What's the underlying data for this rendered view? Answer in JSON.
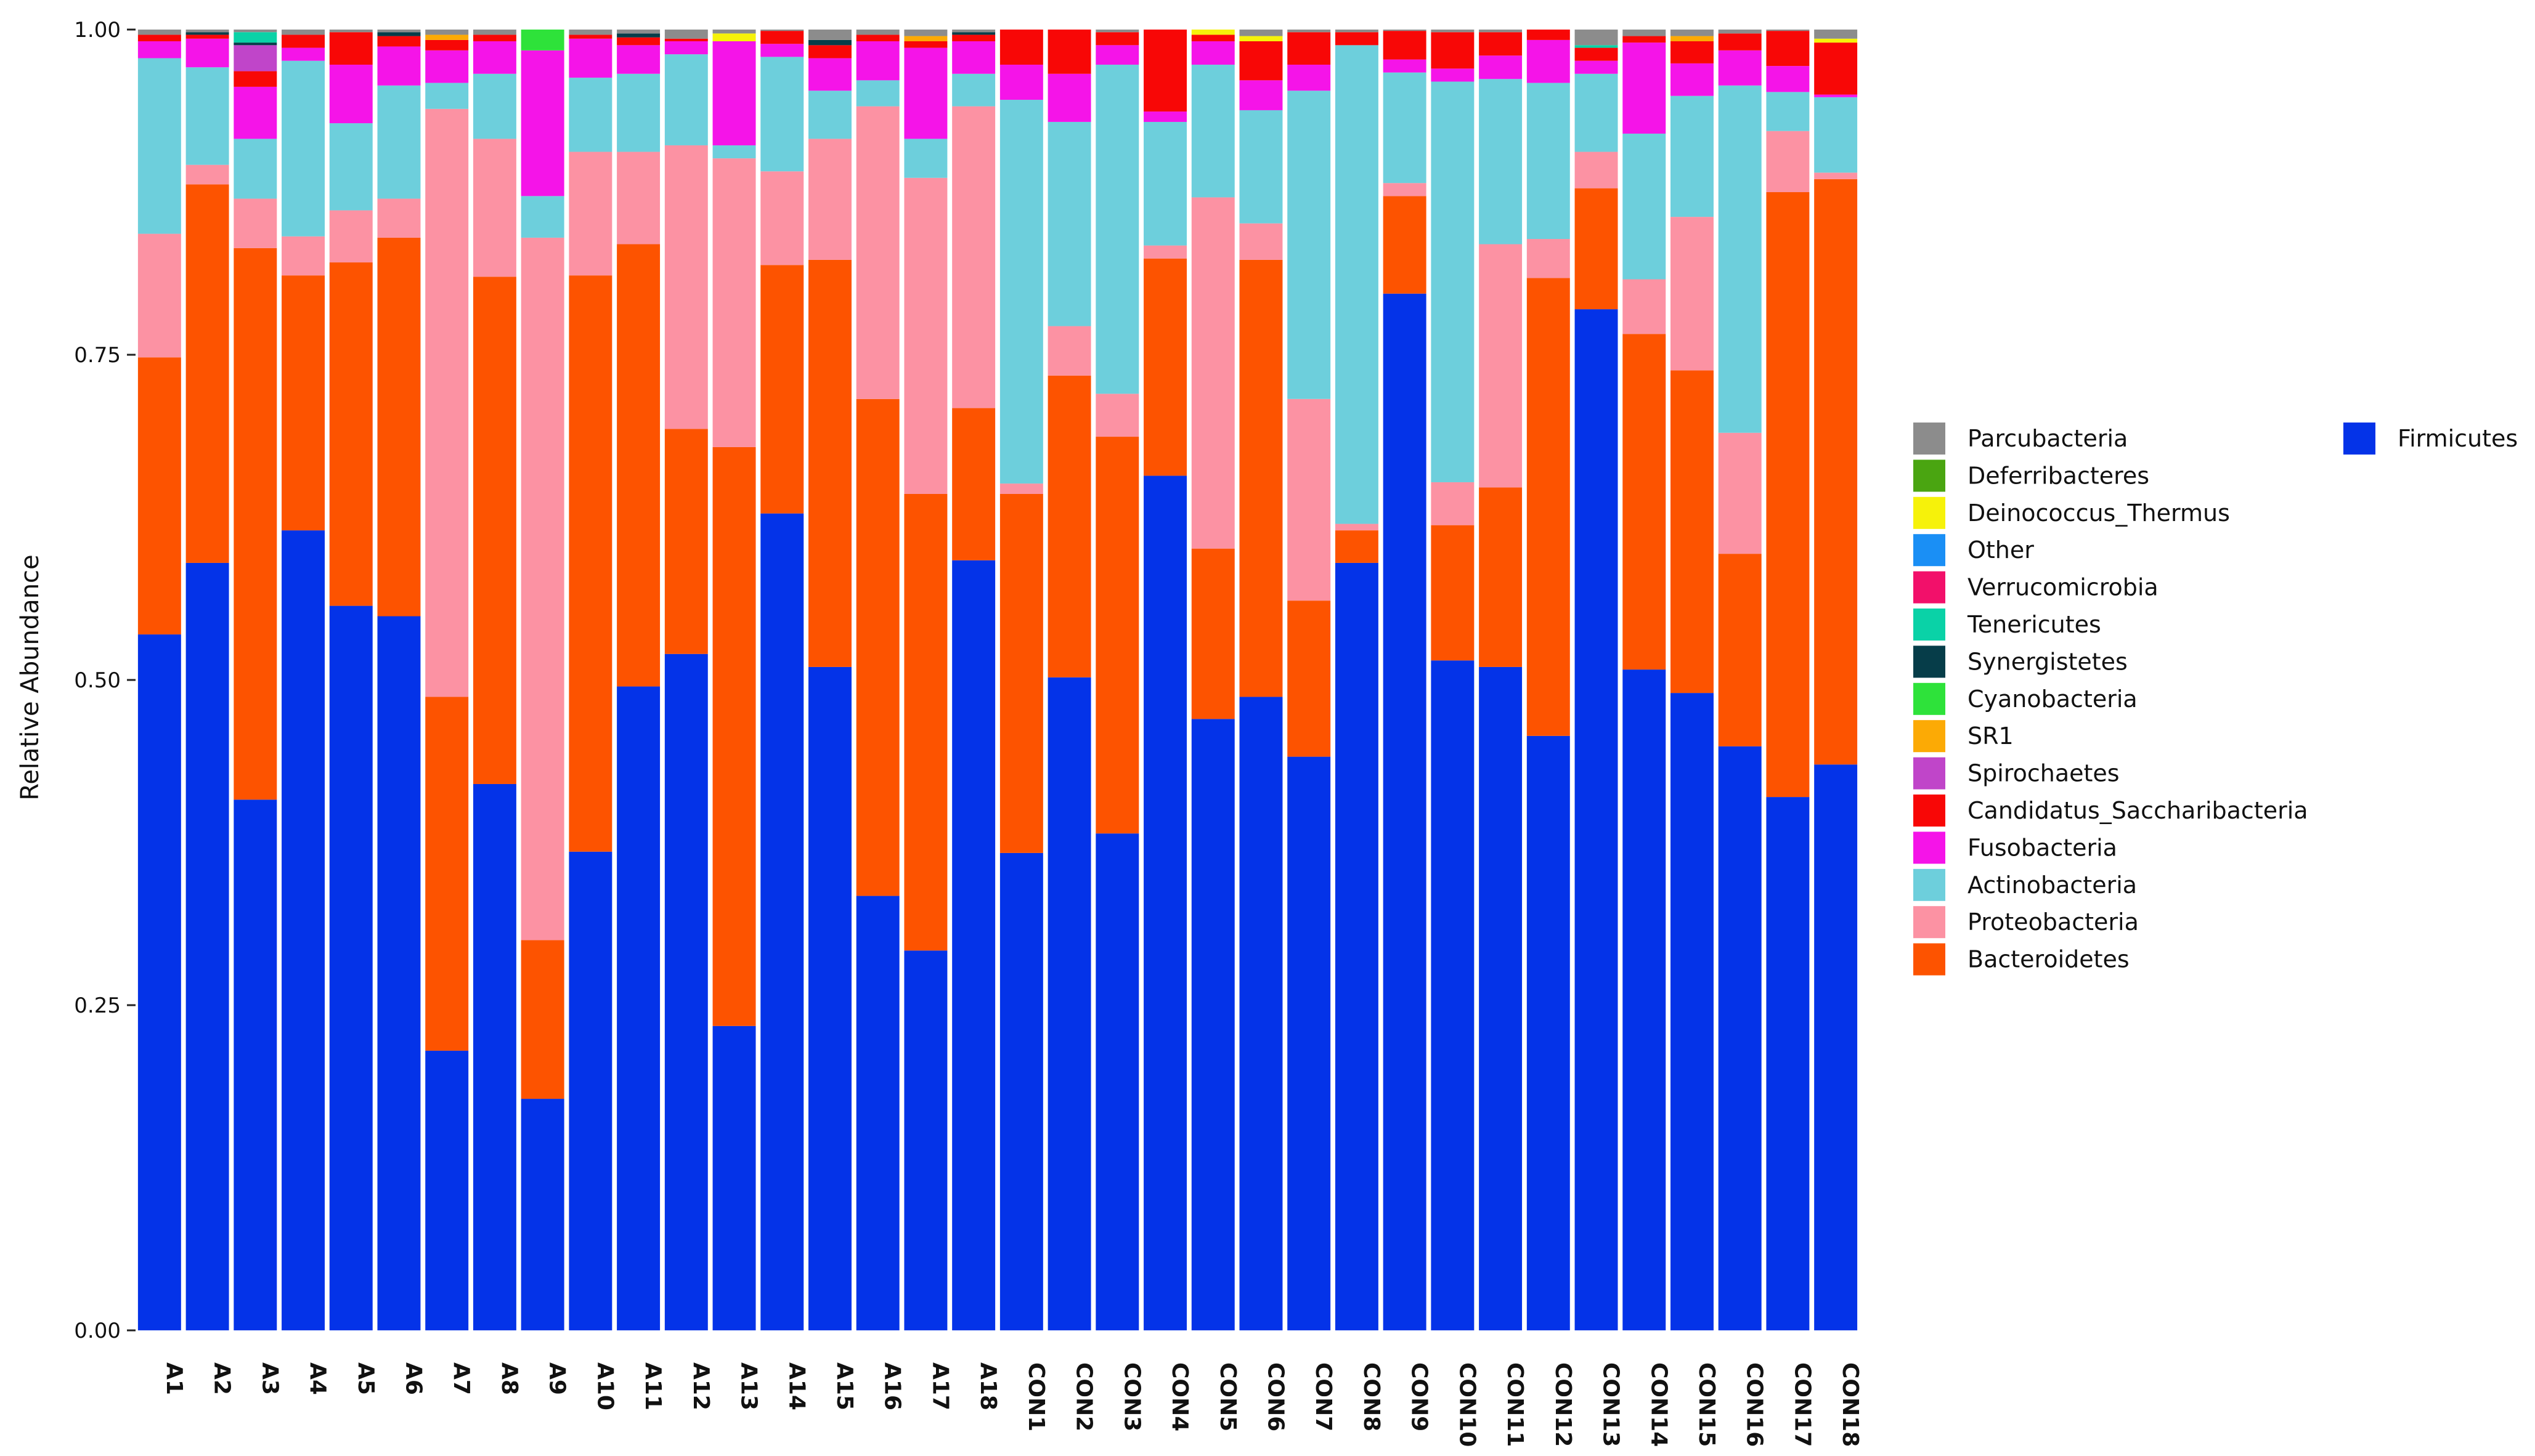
{
  "chart_data": {
    "type": "bar",
    "stacked": true,
    "ylabel": "Relative Abundance",
    "xlabel": "",
    "ylim": [
      0,
      1
    ],
    "yticks": [
      "0.00",
      "0.25",
      "0.50",
      "0.75",
      "1.00"
    ],
    "categories": [
      "A1",
      "A2",
      "A3",
      "A4",
      "A5",
      "A6",
      "A7",
      "A8",
      "A9",
      "A10",
      "A11",
      "A12",
      "A13",
      "A14",
      "A15",
      "A16",
      "A17",
      "A18",
      "CON1",
      "CON2",
      "CON3",
      "CON4",
      "CON5",
      "CON6",
      "CON7",
      "CON8",
      "CON9",
      "CON10",
      "CON11",
      "CON12",
      "CON13",
      "CON14",
      "CON15",
      "CON16",
      "CON17",
      "CON18"
    ],
    "series": [
      {
        "name": "Firmicutes",
        "color": "#0433e8",
        "values": [
          0.535,
          0.59,
          0.408,
          0.615,
          0.557,
          0.549,
          0.215,
          0.42,
          0.178,
          0.368,
          0.495,
          0.52,
          0.234,
          0.628,
          0.51,
          0.334,
          0.292,
          0.592,
          0.367,
          0.502,
          0.382,
          0.657,
          0.47,
          0.487,
          0.441,
          0.59,
          0.797,
          0.515,
          0.51,
          0.457,
          0.785,
          0.508,
          0.49,
          0.449,
          0.41,
          0.435
        ]
      },
      {
        "name": "Bacteroidetes",
        "color": "#fd5300",
        "values": [
          0.213,
          0.291,
          0.424,
          0.196,
          0.264,
          0.291,
          0.272,
          0.39,
          0.122,
          0.443,
          0.34,
          0.173,
          0.445,
          0.191,
          0.313,
          0.382,
          0.351,
          0.117,
          0.276,
          0.232,
          0.305,
          0.167,
          0.131,
          0.336,
          0.12,
          0.025,
          0.075,
          0.104,
          0.138,
          0.352,
          0.093,
          0.258,
          0.248,
          0.148,
          0.465,
          0.45
        ]
      },
      {
        "name": "Proteobacteria",
        "color": "#fc92a3",
        "values": [
          0.095,
          0.015,
          0.038,
          0.03,
          0.04,
          0.03,
          0.452,
          0.106,
          0.54,
          0.095,
          0.071,
          0.218,
          0.222,
          0.072,
          0.093,
          0.225,
          0.243,
          0.232,
          0.008,
          0.038,
          0.033,
          0.01,
          0.27,
          0.028,
          0.155,
          0.005,
          0.01,
          0.033,
          0.187,
          0.03,
          0.028,
          0.042,
          0.118,
          0.093,
          0.047,
          0.005
        ]
      },
      {
        "name": "Actinobacteria",
        "color": "#6dcfdc",
        "values": [
          0.135,
          0.075,
          0.046,
          0.135,
          0.067,
          0.087,
          0.02,
          0.05,
          0.032,
          0.057,
          0.06,
          0.07,
          0.01,
          0.088,
          0.037,
          0.02,
          0.03,
          0.025,
          0.295,
          0.157,
          0.253,
          0.095,
          0.102,
          0.087,
          0.237,
          0.368,
          0.085,
          0.308,
          0.127,
          0.12,
          0.06,
          0.112,
          0.093,
          0.267,
          0.03,
          0.058
        ]
      },
      {
        "name": "Fusobacteria",
        "color": "#f514e8",
        "values": [
          0.013,
          0.022,
          0.04,
          0.01,
          0.045,
          0.03,
          0.025,
          0.025,
          0.112,
          0.03,
          0.022,
          0.01,
          0.08,
          0.01,
          0.025,
          0.03,
          0.07,
          0.025,
          0.027,
          0.037,
          0.015,
          0.008,
          0.018,
          0.023,
          0.02,
          0.0,
          0.01,
          0.01,
          0.018,
          0.033,
          0.01,
          0.07,
          0.025,
          0.027,
          0.02,
          0.002
        ]
      },
      {
        "name": "Candidatus_Saccharibacteria",
        "color": "#f80706",
        "values": [
          0.005,
          0.003,
          0.012,
          0.01,
          0.025,
          0.008,
          0.008,
          0.005,
          0.0,
          0.003,
          0.006,
          0.002,
          0.0,
          0.01,
          0.01,
          0.005,
          0.005,
          0.005,
          0.027,
          0.034,
          0.01,
          0.063,
          0.005,
          0.03,
          0.025,
          0.01,
          0.022,
          0.028,
          0.018,
          0.008,
          0.01,
          0.005,
          0.017,
          0.013,
          0.027,
          0.04
        ]
      },
      {
        "name": "Spirochaetes",
        "color": "#c045c9",
        "values": [
          0.0,
          0.0,
          0.02,
          0.0,
          0.0,
          0.0,
          0.0,
          0.0,
          0.0,
          0.0,
          0.0,
          0.0,
          0.0,
          0.0,
          0.0,
          0.0,
          0.0,
          0.0,
          0.0,
          0.0,
          0.0,
          0.0,
          0.0,
          0.0,
          0.0,
          0.0,
          0.0,
          0.0,
          0.0,
          0.0,
          0.0,
          0.0,
          0.0,
          0.0,
          0.0,
          0.0
        ]
      },
      {
        "name": "SR1",
        "color": "#fcaa05",
        "values": [
          0.0,
          0.0,
          0.0,
          0.0,
          0.0,
          0.0,
          0.004,
          0.0,
          0.0,
          0.0,
          0.0,
          0.0,
          0.0,
          0.0,
          0.0,
          0.0,
          0.004,
          0.0,
          0.0,
          0.0,
          0.0,
          0.0,
          0.0,
          0.0,
          0.0,
          0.0,
          0.0,
          0.0,
          0.0,
          0.0,
          0.0,
          0.0,
          0.004,
          0.0,
          0.0,
          0.0
        ]
      },
      {
        "name": "Cyanobacteria",
        "color": "#2ee23a",
        "values": [
          0.0,
          0.0,
          0.0,
          0.0,
          0.0,
          0.0,
          0.0,
          0.0,
          0.016,
          0.0,
          0.0,
          0.0,
          0.0,
          0.0,
          0.0,
          0.0,
          0.0,
          0.0,
          0.0,
          0.0,
          0.0,
          0.0,
          0.0,
          0.0,
          0.0,
          0.0,
          0.0,
          0.0,
          0.0,
          0.0,
          0.0,
          0.0,
          0.0,
          0.0,
          0.0,
          0.0
        ]
      },
      {
        "name": "Synergistetes",
        "color": "#063d49",
        "values": [
          0.0,
          0.002,
          0.002,
          0.0,
          0.0,
          0.003,
          0.0,
          0.0,
          0.0,
          0.0,
          0.003,
          0.0,
          0.0,
          0.0,
          0.004,
          0.0,
          0.0,
          0.002,
          0.0,
          0.0,
          0.0,
          0.0,
          0.0,
          0.0,
          0.0,
          0.0,
          0.0,
          0.0,
          0.0,
          0.0,
          0.0,
          0.0,
          0.0,
          0.0,
          0.0,
          0.0
        ]
      },
      {
        "name": "Tenericutes",
        "color": "#0ad2a7",
        "values": [
          0.0,
          0.0,
          0.008,
          0.0,
          0.0,
          0.0,
          0.0,
          0.0,
          0.0,
          0.0,
          0.0,
          0.0,
          0.0,
          0.0,
          0.0,
          0.0,
          0.0,
          0.0,
          0.0,
          0.0,
          0.0,
          0.0,
          0.0,
          0.0,
          0.0,
          0.0,
          0.0,
          0.0,
          0.0,
          0.0,
          0.002,
          0.0,
          0.0,
          0.0,
          0.0,
          0.0
        ]
      },
      {
        "name": "Verrucomicrobia",
        "color": "#f2106a",
        "values": [
          0.0,
          0.0,
          0.0,
          0.0,
          0.0,
          0.0,
          0.0,
          0.0,
          0.0,
          0.0,
          0.0,
          0.0,
          0.0,
          0.0,
          0.0,
          0.0,
          0.0,
          0.0,
          0.0,
          0.0,
          0.0,
          0.0,
          0.0,
          0.0,
          0.0,
          0.0,
          0.0,
          0.0,
          0.0,
          0.0,
          0.0,
          0.0,
          0.0,
          0.0,
          0.0,
          0.0
        ]
      },
      {
        "name": "Other",
        "color": "#1a8ff5",
        "values": [
          0.0,
          0.0,
          0.0,
          0.0,
          0.0,
          0.0,
          0.0,
          0.0,
          0.0,
          0.0,
          0.0,
          0.0,
          0.0,
          0.0,
          0.0,
          0.0,
          0.0,
          0.0,
          0.0,
          0.0,
          0.0,
          0.0,
          0.0,
          0.0,
          0.0,
          0.0,
          0.0,
          0.0,
          0.0,
          0.0,
          0.0,
          0.0,
          0.0,
          0.0,
          0.0,
          0.0
        ]
      },
      {
        "name": "Deinococcus_Thermus",
        "color": "#f6f20a",
        "values": [
          0.0,
          0.0,
          0.0,
          0.0,
          0.0,
          0.0,
          0.0,
          0.0,
          0.0,
          0.0,
          0.0,
          0.0,
          0.006,
          0.0,
          0.0,
          0.0,
          0.0,
          0.0,
          0.0,
          0.0,
          0.0,
          0.0,
          0.004,
          0.004,
          0.0,
          0.0,
          0.0,
          0.0,
          0.0,
          0.0,
          0.0,
          0.0,
          0.0,
          0.0,
          0.0,
          0.003
        ]
      },
      {
        "name": "Deferribacteres",
        "color": "#4aa511",
        "values": [
          0.0,
          0.0,
          0.0,
          0.0,
          0.0,
          0.0,
          0.0,
          0.0,
          0.0,
          0.0,
          0.0,
          0.0,
          0.0,
          0.0,
          0.0,
          0.0,
          0.0,
          0.0,
          0.0,
          0.0,
          0.0,
          0.0,
          0.0,
          0.0,
          0.0,
          0.0,
          0.0,
          0.0,
          0.0,
          0.0,
          0.0,
          0.0,
          0.0,
          0.0,
          0.0,
          0.0
        ]
      },
      {
        "name": "Parcubacteria",
        "color": "#8c8c8c",
        "values": [
          0.004,
          0.002,
          0.002,
          0.004,
          0.002,
          0.002,
          0.004,
          0.004,
          0.0,
          0.004,
          0.003,
          0.007,
          0.003,
          0.001,
          0.008,
          0.004,
          0.005,
          0.002,
          0.0,
          0.0,
          0.002,
          0.0,
          0.0,
          0.005,
          0.002,
          0.002,
          0.001,
          0.002,
          0.002,
          0.0,
          0.012,
          0.005,
          0.005,
          0.003,
          0.001,
          0.007
        ]
      }
    ],
    "legend": {
      "placement": "right",
      "column1": [
        "Parcubacteria",
        "Deferribacteres",
        "Deinococcus_Thermus",
        "Other",
        "Verrucomicrobia",
        "Tenericutes",
        "Synergistetes",
        "Cyanobacteria",
        "SR1",
        "Spirochaetes",
        "Candidatus_Saccharibacteria",
        "Fusobacteria",
        "Actinobacteria",
        "Proteobacteria",
        "Bacteroidetes"
      ],
      "column2": [
        "Firmicutes"
      ]
    }
  }
}
